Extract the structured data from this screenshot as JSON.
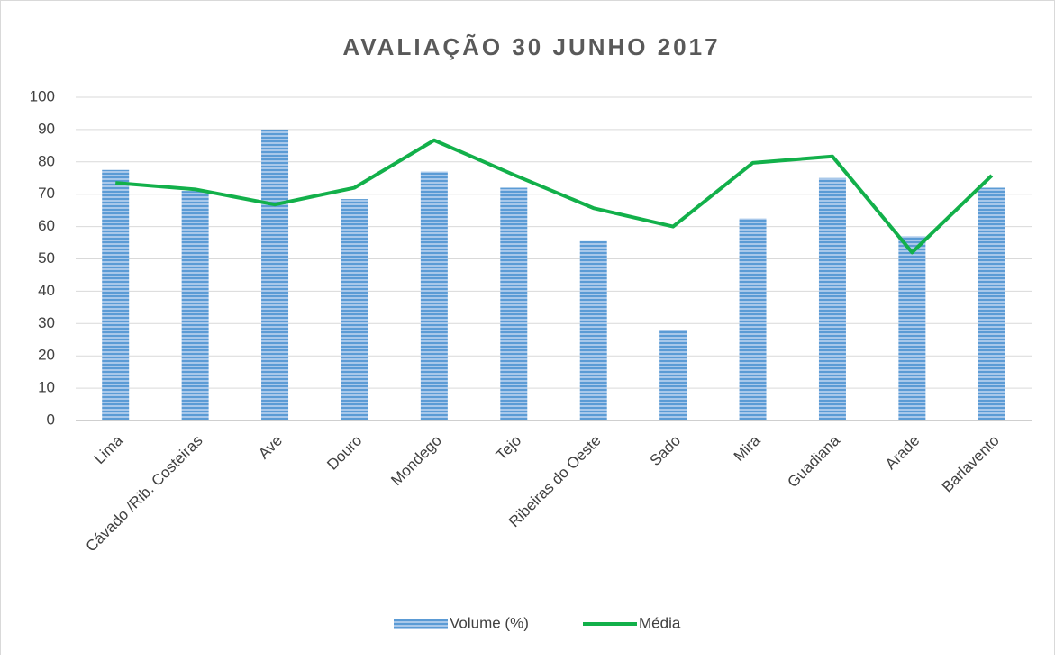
{
  "chart_data": {
    "type": "bar-line",
    "title": "AVALIAÇÃO 30 JUNHO 2017",
    "categories": [
      "Lima",
      "Cávado /Rib. Costeiras",
      "Ave",
      "Douro",
      "Mondego",
      "Tejo",
      "Ribeiras do Oeste",
      "Sado",
      "Mira",
      "Guadiana",
      "Arade",
      "Barlavento"
    ],
    "series": [
      {
        "name": "Volume (%)",
        "type": "bar",
        "color": "#5b9bd5",
        "values": [
          77.5,
          71,
          90,
          68.5,
          77,
          72,
          55.5,
          28,
          62.5,
          75,
          57,
          72
        ]
      },
      {
        "name": "Média",
        "type": "line",
        "color": "#12b04a",
        "values": [
          73.5,
          71.5,
          66.8,
          72,
          86.7,
          76,
          65.7,
          60,
          79.7,
          81.7,
          52,
          75.8
        ]
      }
    ],
    "ylim": [
      0,
      100
    ],
    "yticks": [
      0,
      10,
      20,
      30,
      40,
      50,
      60,
      70,
      80,
      90,
      100
    ],
    "grid": true,
    "legend": "bottom"
  }
}
